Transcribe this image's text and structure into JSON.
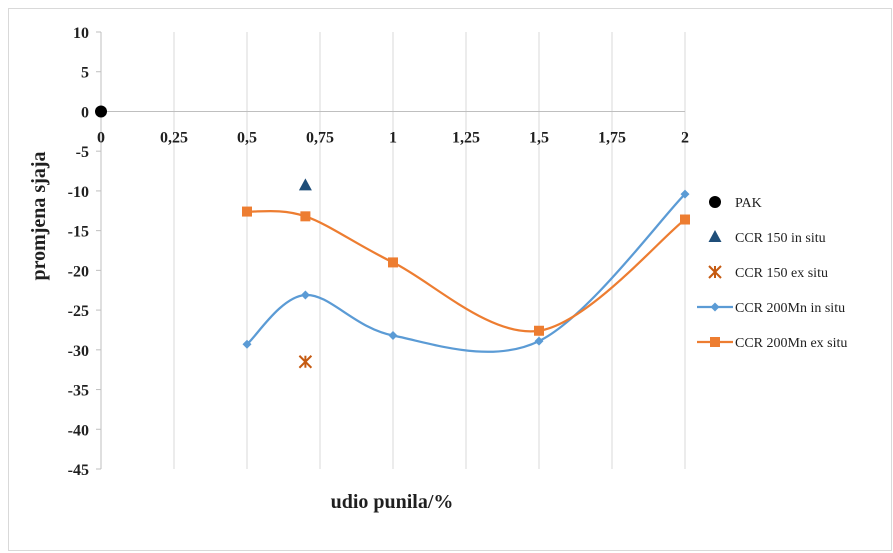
{
  "chart_data": {
    "type": "scatter",
    "xlabel": "udio punila/%",
    "ylabel": "promjena sjaja",
    "xlim": [
      0,
      2
    ],
    "ylim": [
      -45,
      10
    ],
    "x_ticks": [
      0,
      0.25,
      0.5,
      0.75,
      1,
      1.25,
      1.5,
      1.75,
      2
    ],
    "x_tick_labels": [
      "0",
      "0,25",
      "0,5",
      "0,75",
      "1",
      "1,25",
      "1,5",
      "1,75",
      "2"
    ],
    "y_ticks": [
      10,
      5,
      0,
      -5,
      -10,
      -15,
      -20,
      -25,
      -30,
      -35,
      -40,
      -45
    ],
    "y_tick_labels": [
      "10",
      "5",
      "0",
      "-5",
      "-10",
      "-15",
      "-20",
      "-25",
      "-30",
      "-35",
      "-40",
      "-45"
    ],
    "x_tick_position": "along y=0 line",
    "grid": "vertical",
    "legend_position": "right",
    "series": [
      {
        "name": "PAK",
        "marker": "circle",
        "line": false,
        "color": "#000000",
        "points": [
          [
            0,
            0
          ]
        ]
      },
      {
        "name": "CCR 150 in situ",
        "marker": "triangle",
        "line": false,
        "color": "#1f4e79",
        "points": [
          [
            0.7,
            -9.3
          ]
        ]
      },
      {
        "name": "CCR 150 ex situ",
        "marker": "asterisk",
        "line": false,
        "color": "#c55a11",
        "points": [
          [
            0.7,
            -31.5
          ]
        ]
      },
      {
        "name": "CCR 200Mn in situ",
        "marker": "diamond",
        "line": true,
        "smooth": true,
        "color": "#5b9bd5",
        "points": [
          [
            0.5,
            -29.3
          ],
          [
            0.7,
            -23.1
          ],
          [
            1,
            -28.2
          ],
          [
            1.5,
            -28.9
          ],
          [
            2,
            -10.4
          ]
        ]
      },
      {
        "name": "CCR 200Mn ex situ",
        "marker": "square",
        "line": true,
        "smooth": true,
        "color": "#ed7d31",
        "points": [
          [
            0.5,
            -12.6
          ],
          [
            0.7,
            -13.2
          ],
          [
            1,
            -19
          ],
          [
            1.5,
            -27.6
          ],
          [
            2,
            -13.6
          ]
        ]
      }
    ]
  }
}
